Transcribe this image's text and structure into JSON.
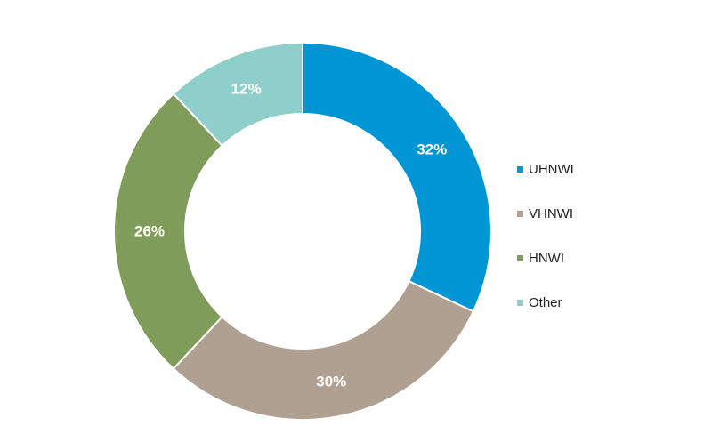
{
  "chart_data": {
    "type": "pie",
    "variant": "donut",
    "categories": [
      "UHNWI",
      "VHNWI",
      "HNWI",
      "Other"
    ],
    "values": [
      32,
      30,
      26,
      12
    ],
    "labels": [
      "32%",
      "30%",
      "26%",
      "12%"
    ],
    "colors": [
      "#0096d6",
      "#b0a092",
      "#7f9c5a",
      "#8ecfcc"
    ],
    "legend_position": "right",
    "start_angle_deg": 0,
    "direction": "clockwise"
  }
}
